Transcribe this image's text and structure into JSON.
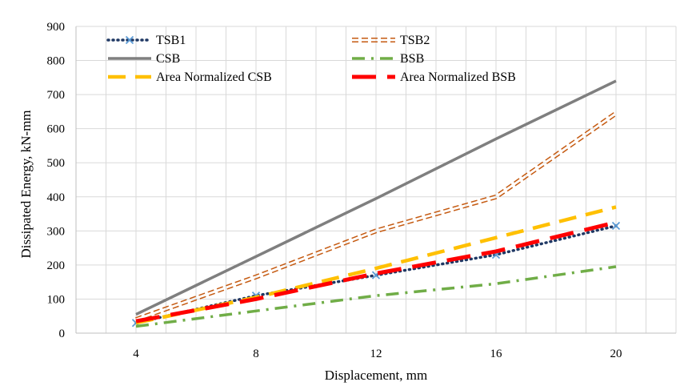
{
  "chart_data": {
    "type": "line",
    "title": "",
    "xlabel": "Displacement, mm",
    "ylabel": "Dissipated Energy, kN-mm",
    "x": [
      4,
      8,
      12,
      16,
      20
    ],
    "xlim": [
      2,
      22
    ],
    "ylim": [
      0,
      900
    ],
    "yticks": [
      0,
      100,
      200,
      300,
      400,
      500,
      600,
      700,
      800,
      900
    ],
    "grid": true,
    "legend_position": "top",
    "series": [
      {
        "name": "TSB1",
        "values": [
          30,
          110,
          170,
          230,
          315
        ],
        "color": "#1f3864",
        "style": "dotted",
        "marker": "x",
        "marker_color": "#5b9bd5"
      },
      {
        "name": "TSB2",
        "values": [
          40,
          165,
          300,
          400,
          645
        ],
        "color": "#c55a11",
        "style": "double-dash"
      },
      {
        "name": "CSB",
        "values": [
          55,
          225,
          395,
          570,
          740
        ],
        "color": "#7f7f7f",
        "style": "solid"
      },
      {
        "name": "BSB",
        "values": [
          20,
          65,
          110,
          145,
          195
        ],
        "color": "#70ad47",
        "style": "dash-dot"
      },
      {
        "name": "Area Normalized CSB",
        "values": [
          30,
          105,
          190,
          280,
          370
        ],
        "color": "#ffc000",
        "style": "dashed"
      },
      {
        "name": "Area Normalized BSB",
        "values": [
          35,
          100,
          175,
          240,
          325
        ],
        "color": "#ff0000",
        "style": "long-dash"
      }
    ]
  }
}
